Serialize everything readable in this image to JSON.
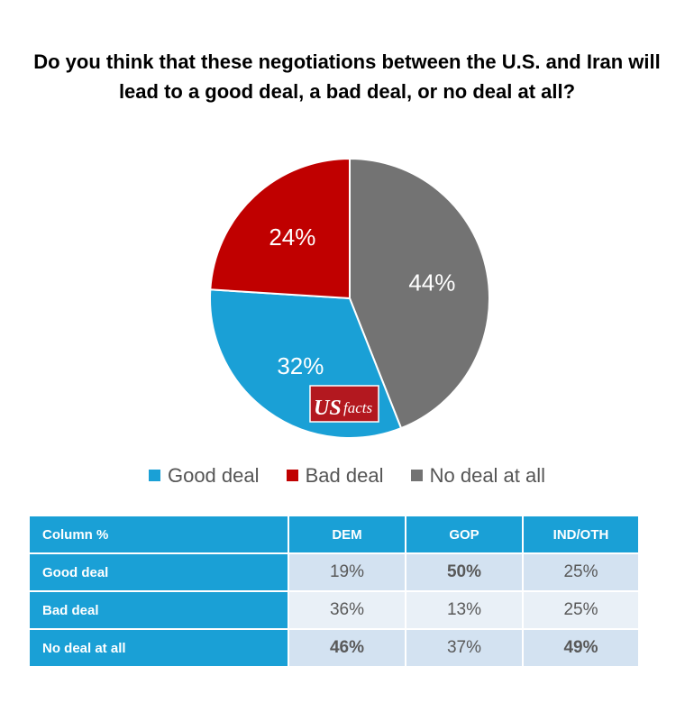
{
  "title": "Do you think that these negotiations between the U.S. and Iran will lead to a good deal, a bad deal, or no deal at all?",
  "logo": {
    "text_us": "US",
    "text_facts": "facts",
    "bg": "#b3181f"
  },
  "chart_data": {
    "type": "pie",
    "title": "Do you think that these negotiations between the U.S. and Iran will lead to a good deal, a bad deal, or no deal at all?",
    "slices": [
      {
        "label": "No deal at all",
        "value": 44,
        "display": "44%",
        "color": "#737373"
      },
      {
        "label": "Good deal",
        "value": 32,
        "display": "32%",
        "color": "#1aa0d6"
      },
      {
        "label": "Bad deal",
        "value": 24,
        "display": "24%",
        "color": "#c00000"
      }
    ],
    "legend": [
      {
        "label": "Good deal",
        "color": "#1aa0d6"
      },
      {
        "label": "Bad deal",
        "color": "#c00000"
      },
      {
        "label": "No deal at all",
        "color": "#737373"
      }
    ]
  },
  "table": {
    "headers": [
      "Column %",
      "DEM",
      "GOP",
      "IND/OTH"
    ],
    "rows": [
      {
        "label": "Good deal",
        "values": [
          "19%",
          "50%",
          "25%"
        ],
        "bold": [
          false,
          true,
          false
        ]
      },
      {
        "label": "Bad deal",
        "values": [
          "36%",
          "13%",
          "25%"
        ],
        "bold": [
          false,
          false,
          false
        ]
      },
      {
        "label": "No deal at all",
        "values": [
          "46%",
          "37%",
          "49%"
        ],
        "bold": [
          true,
          false,
          true
        ]
      }
    ]
  }
}
